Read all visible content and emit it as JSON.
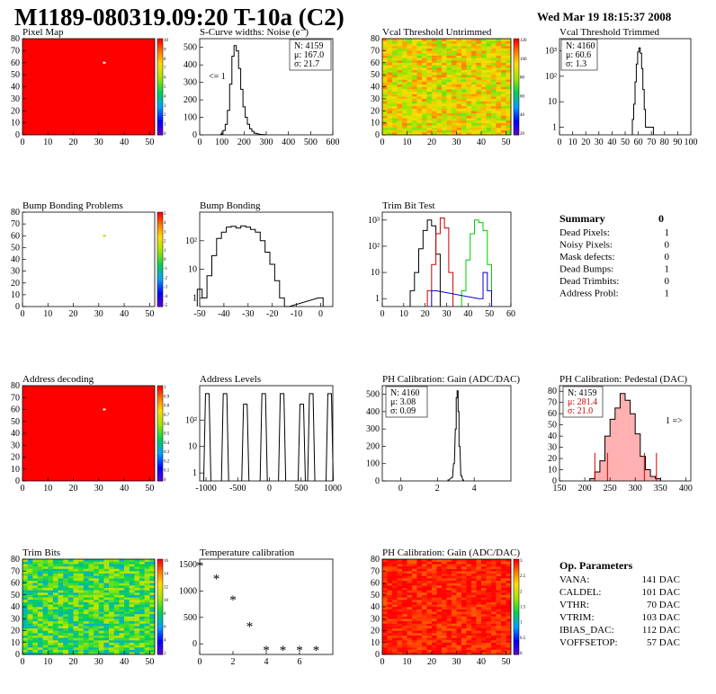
{
  "header": {
    "title": "M1189-080319.09:20 T-10a (C2)",
    "datetime": "Wed Mar 19 18:15:37 2008"
  },
  "colors": {
    "hot": "#ff0000",
    "black": "#000000",
    "histo_red": "#cc0000",
    "histo_green": "#00cc00",
    "histo_blue": "#0000cc",
    "pedestal_fill": "#ffb0b0"
  },
  "chart_data": [
    {
      "id": "pixel_map",
      "type": "heatmap",
      "title": "Pixel Map",
      "xlim": [
        0,
        52
      ],
      "ylim": [
        0,
        80
      ],
      "xticks": [
        0,
        10,
        20,
        30,
        40,
        50
      ],
      "yticks": [
        0,
        10,
        20,
        30,
        40,
        50,
        60,
        70,
        80
      ],
      "fill_level": 10,
      "zlim": [
        0,
        10
      ],
      "zticks": [
        "10",
        "9",
        "8",
        "7",
        "6",
        "5",
        "4",
        "3",
        "2",
        "1",
        "0"
      ],
      "special_pixels": [
        {
          "x": 32,
          "y": 60,
          "value": 0
        }
      ]
    },
    {
      "id": "scurve_noise",
      "type": "line",
      "title": "S-Curve widths: Noise (e⁻)",
      "xlim": [
        0,
        600
      ],
      "ylim": [
        0,
        550
      ],
      "xticks": [
        0,
        100,
        200,
        300,
        400,
        500,
        600
      ],
      "yticks": [
        0,
        100,
        200,
        300,
        400,
        500
      ],
      "stats": {
        "N": "4159",
        "mean": "167.0",
        "sigma": "21.7"
      },
      "underflow_label": "<= 1",
      "x": [
        100,
        110,
        120,
        130,
        140,
        150,
        160,
        170,
        180,
        190,
        200,
        210,
        220,
        230,
        240,
        250,
        260,
        270,
        280,
        290
      ],
      "values": [
        5,
        25,
        60,
        140,
        290,
        450,
        510,
        480,
        380,
        260,
        160,
        100,
        60,
        35,
        20,
        10,
        6,
        3,
        2,
        1
      ]
    },
    {
      "id": "vcal_untrimmed",
      "type": "heatmap",
      "title": "Vcal Threshold Untrimmed",
      "xlim": [
        0,
        52
      ],
      "ylim": [
        0,
        80
      ],
      "xticks": [
        0,
        10,
        20,
        30,
        40,
        50
      ],
      "yticks": [
        0,
        10,
        20,
        30,
        40,
        50,
        60,
        70,
        80
      ],
      "zlim": [
        0,
        140
      ],
      "zticks": [
        "120",
        "100",
        "80",
        "60",
        "40",
        "20"
      ],
      "typical_level": 100
    },
    {
      "id": "vcal_trimmed",
      "type": "line",
      "title": "Vcal Threshold Trimmed",
      "log_y": true,
      "xlim": [
        0,
        100
      ],
      "ylim": [
        0.5,
        3000
      ],
      "xticks": [
        0,
        10,
        20,
        30,
        40,
        50,
        60,
        70,
        80,
        90,
        100
      ],
      "yticks": [
        "1",
        "10",
        "10²",
        "10³"
      ],
      "stats": {
        "N": "4160",
        "mean": "60.6",
        "sigma": "1.3"
      },
      "x": [
        56,
        57,
        58,
        59,
        60,
        61,
        62,
        63,
        64,
        65,
        66,
        71
      ],
      "values": [
        2,
        8,
        60,
        300,
        900,
        1300,
        800,
        200,
        30,
        5,
        1,
        1
      ]
    },
    {
      "id": "bump_problems",
      "type": "heatmap",
      "title": "Bump Bonding Problems",
      "xlim": [
        0,
        52
      ],
      "ylim": [
        0,
        80
      ],
      "xticks": [
        0,
        10,
        20,
        30,
        40,
        50
      ],
      "yticks": [
        0,
        10,
        20,
        30,
        40,
        50,
        60,
        70,
        80
      ],
      "zlim": [
        -5,
        5
      ],
      "zticks": [
        "5",
        "4",
        "3",
        "2",
        "1",
        "0",
        "-1",
        "-2",
        "-3",
        "-4",
        "-5"
      ],
      "special_pixels": [
        {
          "x": 32,
          "y": 60,
          "value": 1
        }
      ]
    },
    {
      "id": "bump_bonding",
      "type": "line",
      "title": "Bump Bonding",
      "log_y": true,
      "xlim": [
        -50,
        5
      ],
      "ylim": [
        0.5,
        1000
      ],
      "xticks": [
        -50,
        -40,
        -30,
        -20,
        -10,
        0
      ],
      "yticks": [
        "1",
        "10",
        "10²"
      ],
      "x": [
        -50,
        -48,
        -46,
        -44,
        -42,
        -40,
        -38,
        -36,
        -34,
        -32,
        -30,
        -28,
        -26,
        -24,
        -22,
        -20,
        -18,
        -16,
        -14,
        0
      ],
      "values": [
        2,
        1,
        6,
        30,
        120,
        200,
        300,
        320,
        280,
        330,
        300,
        250,
        200,
        100,
        40,
        15,
        4,
        1,
        0,
        1
      ]
    },
    {
      "id": "trim_bit_test",
      "type": "line",
      "title": "Trim Bit Test",
      "log_y": true,
      "xlim": [
        0,
        60
      ],
      "ylim": [
        0.5,
        2000
      ],
      "xticks": [
        0,
        10,
        20,
        30,
        40,
        50,
        60
      ],
      "yticks": [
        "1",
        "10",
        "10²",
        "10³"
      ],
      "series": [
        {
          "color": "#000000",
          "x": [
            14,
            16,
            18,
            20,
            22,
            24,
            26
          ],
          "values": [
            2,
            10,
            80,
            400,
            1000,
            600,
            50
          ]
        },
        {
          "color": "#cc0000",
          "x": [
            22,
            24,
            26,
            28,
            30,
            32
          ],
          "values": [
            2,
            20,
            300,
            1200,
            500,
            10
          ]
        },
        {
          "color": "#00cc00",
          "x": [
            38,
            40,
            42,
            44,
            46,
            48,
            50
          ],
          "values": [
            2,
            30,
            300,
            1000,
            800,
            400,
            20
          ]
        },
        {
          "color": "#0000cc",
          "x": [
            24,
            46,
            48,
            50
          ],
          "values": [
            2,
            1,
            10,
            2
          ]
        }
      ]
    },
    {
      "id": "address_decoding",
      "type": "heatmap",
      "title": "Address decoding",
      "xlim": [
        0,
        52
      ],
      "ylim": [
        0,
        80
      ],
      "xticks": [
        0,
        10,
        20,
        30,
        40,
        50
      ],
      "yticks": [
        0,
        10,
        20,
        30,
        40,
        50,
        60,
        70,
        80
      ],
      "zlim": [
        0,
        1
      ],
      "fill_level": 1,
      "zticks": [
        "1",
        "0.9",
        "0.8",
        "0.7",
        "0.6",
        "0.5",
        "0.4",
        "0.3",
        "0.2",
        "0.1",
        "0"
      ],
      "special_pixels": [
        {
          "x": 32,
          "y": 60,
          "value": 0
        }
      ]
    },
    {
      "id": "address_levels",
      "type": "line",
      "title": "Address Levels",
      "log_y": true,
      "xlim": [
        -1100,
        1000
      ],
      "ylim": [
        0.5,
        2000
      ],
      "xticks": [
        -1000,
        -500,
        0,
        500,
        1000
      ],
      "yticks": [
        "1",
        "10",
        "10²"
      ],
      "x": [
        -980,
        -700,
        -380,
        -90,
        200,
        510,
        660,
        950
      ],
      "values": [
        1000,
        1000,
        400,
        1000,
        1000,
        400,
        1000,
        1000
      ]
    },
    {
      "id": "ph_gain",
      "type": "line",
      "title": "PH Calibration: Gain (ADC/DAC)",
      "xlim": [
        -1,
        6
      ],
      "ylim": [
        0,
        550
      ],
      "xticks": [
        0,
        2,
        4
      ],
      "yticks": [
        0,
        100,
        200,
        300,
        400,
        500
      ],
      "stats": {
        "N": "4160",
        "mean": "3.08",
        "sigma": "0.09"
      },
      "x": [
        2.6,
        2.8,
        2.9,
        3.0,
        3.05,
        3.1,
        3.15,
        3.2,
        3.3,
        3.4
      ],
      "values": [
        5,
        20,
        100,
        300,
        480,
        520,
        400,
        200,
        30,
        5
      ]
    },
    {
      "id": "ph_pedestal",
      "type": "area",
      "title": "PH Calibration: Pedestal (DAC)",
      "xlim": [
        150,
        410
      ],
      "ylim": [
        0,
        85
      ],
      "xticks": [
        150,
        200,
        250,
        300,
        350,
        400
      ],
      "yticks": [
        0,
        10,
        20,
        30,
        40,
        50,
        60,
        70,
        80
      ],
      "stats": {
        "N": "4159",
        "mean": "281.4",
        "sigma": "21.0"
      },
      "overflow_label": "1 =>",
      "cut_lines": [
        220,
        245,
        318,
        342
      ],
      "x": [
        215,
        225,
        235,
        245,
        255,
        265,
        275,
        285,
        295,
        305,
        315,
        325,
        335,
        345
      ],
      "values": [
        2,
        8,
        18,
        40,
        55,
        65,
        78,
        72,
        60,
        42,
        22,
        10,
        4,
        2
      ]
    },
    {
      "id": "trim_bits",
      "type": "heatmap",
      "title": "Trim Bits",
      "xlim": [
        0,
        52
      ],
      "ylim": [
        0,
        80
      ],
      "xticks": [
        0,
        10,
        20,
        30,
        40,
        50
      ],
      "yticks": [
        0,
        10,
        20,
        30,
        40,
        50,
        60,
        70,
        80
      ],
      "zlim": [
        0,
        16
      ],
      "zticks": [
        "16",
        "14",
        "12",
        "10",
        "8",
        "6",
        "4",
        "2"
      ],
      "typical_level": 8
    },
    {
      "id": "temperature_calibration",
      "type": "scatter",
      "title": "Temperature calibration",
      "xlim": [
        0,
        8
      ],
      "ylim": [
        -200,
        1600
      ],
      "xticks": [
        0,
        2,
        4,
        6
      ],
      "yticks": [
        0,
        500,
        1000,
        1500
      ],
      "x": [
        0,
        1,
        2,
        3,
        4,
        5,
        6,
        7
      ],
      "values": [
        1500,
        1250,
        850,
        350,
        -100,
        -100,
        -100,
        -100
      ]
    },
    {
      "id": "ph_gain_map",
      "type": "heatmap",
      "title": "PH Calibration: Gain (ADC/DAC)",
      "xlim": [
        0,
        52
      ],
      "ylim": [
        0,
        80
      ],
      "xticks": [
        0,
        10,
        20,
        30,
        40,
        50
      ],
      "yticks": [
        0,
        10,
        20,
        30,
        40,
        50,
        60,
        70,
        80
      ],
      "zlim": [
        0,
        3.2
      ],
      "zticks": [
        "3",
        "2.5",
        "2",
        "1.5",
        "1",
        "0.5",
        "0"
      ],
      "typical_level": 3.1
    }
  ],
  "summary": {
    "title": "Summary",
    "total": "0",
    "rows": [
      {
        "label": "Dead Pixels:",
        "value": "1"
      },
      {
        "label": "Noisy Pixels:",
        "value": "0"
      },
      {
        "label": "Mask defects:",
        "value": "0"
      },
      {
        "label": "Dead Bumps:",
        "value": "1"
      },
      {
        "label": "Dead Trimbits:",
        "value": "0"
      },
      {
        "label": "Address Probl:",
        "value": "1"
      }
    ]
  },
  "op_parameters": {
    "title": "Op. Parameters",
    "rows": [
      {
        "label": "VANA:",
        "value": "141 DAC"
      },
      {
        "label": "CALDEL:",
        "value": "101 DAC"
      },
      {
        "label": "VTHR:",
        "value": "70 DAC"
      },
      {
        "label": "VTRIM:",
        "value": "103 DAC"
      },
      {
        "label": "IBIAS_DAC:",
        "value": "112 DAC"
      },
      {
        "label": "VOFFSETOP:",
        "value": "57 DAC"
      }
    ]
  }
}
